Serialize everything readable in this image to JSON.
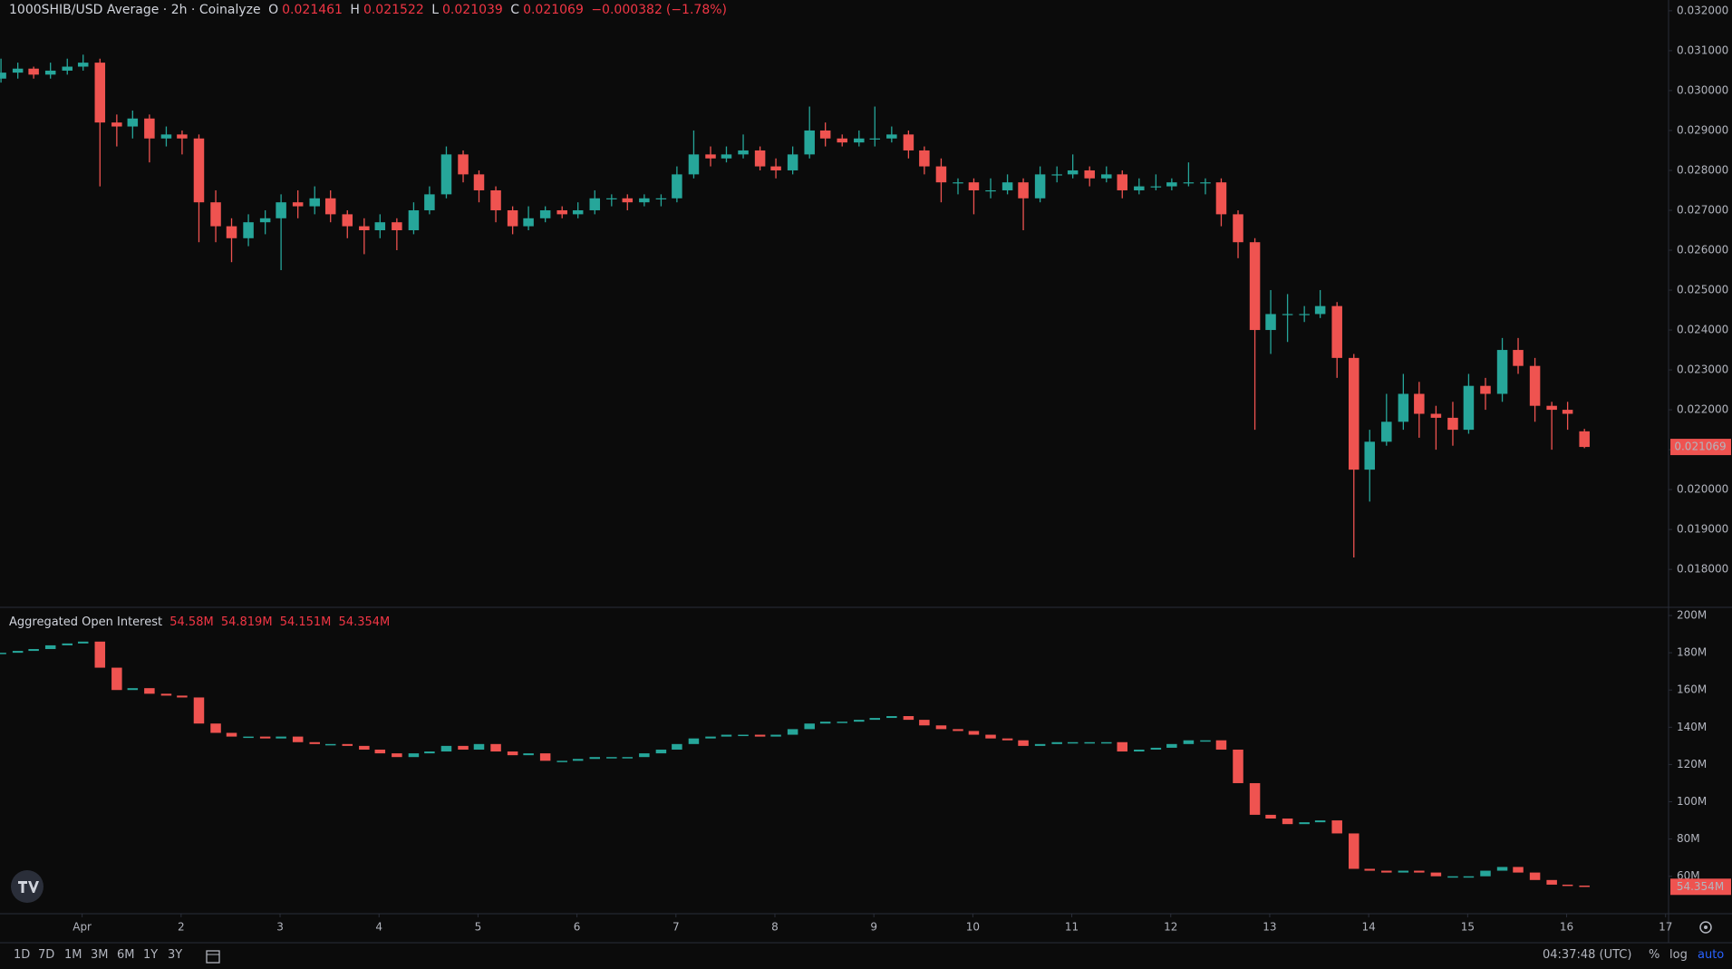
{
  "chart_data": [
    {
      "type": "candlestick",
      "title": "1000SHIB/USD Average · 2h · Coinalyze",
      "ohlc_keys": [
        "O",
        "H",
        "L",
        "C"
      ],
      "change": {
        "value": -0.000382,
        "label": "−0.000382"
      },
      "change_pct": {
        "value": -1.78,
        "label": "(−1.78%)"
      },
      "up_color": "#26a69a",
      "down_color": "#ef5350",
      "x": [
        0.18,
        0.35,
        0.51,
        0.68,
        0.85,
        1.01,
        1.18,
        1.35,
        1.51,
        1.68,
        1.85,
        2.01,
        2.18,
        2.35,
        2.51,
        2.68,
        2.85,
        3.01,
        3.18,
        3.35,
        3.51,
        3.68,
        3.85,
        4.01,
        4.18,
        4.35,
        4.51,
        4.68,
        4.85,
        5.01,
        5.18,
        5.35,
        5.51,
        5.68,
        5.85,
        6.01,
        6.18,
        6.35,
        6.51,
        6.68,
        6.85,
        7.01,
        7.18,
        7.35,
        7.51,
        7.68,
        7.85,
        8.01,
        8.18,
        8.35,
        8.51,
        8.68,
        8.85,
        9.01,
        9.18,
        9.35,
        9.51,
        9.68,
        9.85,
        10.01,
        10.18,
        10.35,
        10.51,
        10.68,
        10.85,
        11.01,
        11.18,
        11.35,
        11.51,
        11.68,
        11.85,
        12.01,
        12.18,
        12.35,
        12.51,
        12.68,
        12.85,
        13.01,
        13.18,
        13.35,
        13.51,
        13.68,
        13.85,
        14.01,
        14.18,
        14.35,
        14.51,
        14.68,
        14.85,
        15.01,
        15.18,
        15.35,
        15.51,
        15.68,
        15.85,
        16.01,
        16.18
      ],
      "open": [
        0.0303,
        0.03045,
        0.03055,
        0.0304,
        0.0305,
        0.0306,
        0.0307,
        0.0292,
        0.0291,
        0.0293,
        0.0288,
        0.0289,
        0.0288,
        0.0272,
        0.0266,
        0.0263,
        0.0267,
        0.0268,
        0.0272,
        0.0271,
        0.0273,
        0.0269,
        0.0266,
        0.0265,
        0.0267,
        0.0265,
        0.027,
        0.0274,
        0.0284,
        0.0279,
        0.0275,
        0.027,
        0.0266,
        0.0268,
        0.027,
        0.0269,
        0.027,
        0.0273,
        0.0273,
        0.0272,
        0.0273,
        0.0273,
        0.0279,
        0.0284,
        0.0283,
        0.0284,
        0.0285,
        0.0281,
        0.028,
        0.0284,
        0.029,
        0.0288,
        0.0287,
        0.0288,
        0.0288,
        0.0289,
        0.0285,
        0.0281,
        0.0277,
        0.0277,
        0.0275,
        0.0275,
        0.0277,
        0.0273,
        0.0279,
        0.0279,
        0.028,
        0.0278,
        0.0279,
        0.0275,
        0.0276,
        0.0276,
        0.0277,
        0.0277,
        0.0277,
        0.0269,
        0.0262,
        0.024,
        0.0244,
        0.0244,
        0.0244,
        0.0246,
        0.0233,
        0.0205,
        0.0212,
        0.0217,
        0.0224,
        0.0219,
        0.0218,
        0.0215,
        0.0226,
        0.0224,
        0.0235,
        0.0231,
        0.0221,
        0.022,
        0.021461
      ],
      "high": [
        0.0308,
        0.0307,
        0.0306,
        0.0307,
        0.0308,
        0.0309,
        0.0308,
        0.0294,
        0.0295,
        0.0294,
        0.0291,
        0.029,
        0.0289,
        0.0275,
        0.0268,
        0.0269,
        0.027,
        0.0274,
        0.0275,
        0.0276,
        0.0275,
        0.027,
        0.0268,
        0.0269,
        0.0268,
        0.0272,
        0.0276,
        0.0286,
        0.0285,
        0.028,
        0.0276,
        0.0271,
        0.0271,
        0.0271,
        0.0271,
        0.0272,
        0.0275,
        0.0274,
        0.0274,
        0.0274,
        0.0274,
        0.0281,
        0.029,
        0.0286,
        0.0286,
        0.0289,
        0.0286,
        0.0283,
        0.0286,
        0.0296,
        0.0292,
        0.0289,
        0.029,
        0.0296,
        0.0291,
        0.029,
        0.0286,
        0.0283,
        0.0278,
        0.0278,
        0.0278,
        0.0279,
        0.0278,
        0.0281,
        0.0281,
        0.0284,
        0.0281,
        0.0281,
        0.028,
        0.0278,
        0.0279,
        0.0278,
        0.0282,
        0.0278,
        0.0278,
        0.027,
        0.0263,
        0.025,
        0.0249,
        0.0246,
        0.025,
        0.0247,
        0.0234,
        0.0215,
        0.0224,
        0.0229,
        0.0227,
        0.0221,
        0.0222,
        0.0229,
        0.0228,
        0.0238,
        0.0238,
        0.0233,
        0.0222,
        0.0222,
        0.021522
      ],
      "low": [
        0.0302,
        0.0303,
        0.0303,
        0.0303,
        0.0304,
        0.0305,
        0.0276,
        0.0286,
        0.0288,
        0.0282,
        0.0286,
        0.0284,
        0.0262,
        0.0262,
        0.0257,
        0.0261,
        0.0264,
        0.0255,
        0.0268,
        0.0269,
        0.0267,
        0.0263,
        0.0259,
        0.0263,
        0.026,
        0.0264,
        0.0269,
        0.0273,
        0.0277,
        0.0272,
        0.0267,
        0.0264,
        0.0265,
        0.0267,
        0.0268,
        0.0268,
        0.0269,
        0.0271,
        0.027,
        0.0271,
        0.0271,
        0.0272,
        0.0278,
        0.0281,
        0.0282,
        0.0283,
        0.028,
        0.0278,
        0.0279,
        0.0283,
        0.0286,
        0.0286,
        0.0286,
        0.0286,
        0.0287,
        0.0283,
        0.0279,
        0.0272,
        0.0274,
        0.0269,
        0.0273,
        0.0274,
        0.0265,
        0.0272,
        0.0277,
        0.0278,
        0.0276,
        0.0277,
        0.0273,
        0.0274,
        0.0275,
        0.0275,
        0.0276,
        0.0274,
        0.0266,
        0.0258,
        0.0215,
        0.0234,
        0.0237,
        0.0242,
        0.0243,
        0.0228,
        0.0183,
        0.0197,
        0.0211,
        0.0215,
        0.0213,
        0.021,
        0.0211,
        0.0214,
        0.022,
        0.0222,
        0.0229,
        0.0217,
        0.021,
        0.0215,
        0.021039
      ],
      "close": [
        0.03045,
        0.03055,
        0.0304,
        0.0305,
        0.0306,
        0.0307,
        0.0292,
        0.0291,
        0.0293,
        0.0288,
        0.0289,
        0.0288,
        0.0272,
        0.0266,
        0.0263,
        0.0267,
        0.0268,
        0.0272,
        0.0271,
        0.0273,
        0.0269,
        0.0266,
        0.0265,
        0.0267,
        0.0265,
        0.027,
        0.0274,
        0.0284,
        0.0279,
        0.0275,
        0.027,
        0.0266,
        0.0268,
        0.027,
        0.0269,
        0.027,
        0.0273,
        0.0273,
        0.0272,
        0.0273,
        0.0273,
        0.0279,
        0.0284,
        0.0283,
        0.0284,
        0.0285,
        0.0281,
        0.028,
        0.0284,
        0.029,
        0.0288,
        0.0287,
        0.0288,
        0.0288,
        0.0289,
        0.0285,
        0.0281,
        0.0277,
        0.0277,
        0.0275,
        0.0275,
        0.0277,
        0.0273,
        0.0279,
        0.0279,
        0.028,
        0.0278,
        0.0279,
        0.0275,
        0.0276,
        0.0276,
        0.0277,
        0.0277,
        0.0277,
        0.0269,
        0.0262,
        0.024,
        0.0244,
        0.0244,
        0.0244,
        0.0246,
        0.0233,
        0.0205,
        0.0212,
        0.0217,
        0.0224,
        0.0219,
        0.0218,
        0.0215,
        0.0226,
        0.0224,
        0.0235,
        0.0231,
        0.0221,
        0.022,
        0.0219,
        0.021069
      ],
      "xlim": [
        0.17,
        17.03
      ],
      "xticks": [
        {
          "value": 1,
          "label": "Apr"
        },
        2,
        3,
        4,
        5,
        6,
        7,
        8,
        9,
        10,
        11,
        12,
        13,
        14,
        15,
        16,
        17
      ],
      "ylim": [
        0.01705,
        0.03227
      ],
      "yticks": [
        {
          "value": 0.018,
          "label": "0.018000"
        },
        {
          "value": 0.019,
          "label": "0.019000"
        },
        {
          "value": 0.02,
          "label": "0.020000"
        },
        {
          "value": 0.021,
          "label": "0.021000"
        },
        {
          "value": 0.022,
          "label": "0.022000"
        },
        {
          "value": 0.023,
          "label": "0.023000"
        },
        {
          "value": 0.024,
          "label": "0.024000"
        },
        {
          "value": 0.025,
          "label": "0.025000"
        },
        {
          "value": 0.026,
          "label": "0.026000"
        },
        {
          "value": 0.027,
          "label": "0.027000"
        },
        {
          "value": 0.028,
          "label": "0.028000"
        },
        {
          "value": 0.029,
          "label": "0.029000"
        },
        {
          "value": 0.03,
          "label": "0.030000"
        },
        {
          "value": 0.031,
          "label": "0.031000"
        },
        {
          "value": 0.032,
          "label": "0.032000"
        }
      ]
    },
    {
      "type": "candlestick-close",
      "title": "Aggregated Open Interest",
      "legend_values": [
        {
          "value": 54.58,
          "label": "54.58M"
        },
        {
          "value": 54.819,
          "label": "54.819M"
        },
        {
          "value": 54.151,
          "label": "54.151M"
        },
        {
          "value": 54.354,
          "label": "54.354M"
        }
      ],
      "up_color": "#26a69a",
      "down_color": "#ef5350",
      "values": [
        180,
        181,
        182,
        184,
        185,
        186,
        172,
        160,
        161,
        158,
        157,
        156,
        142,
        137,
        135,
        135,
        134,
        135,
        132,
        131,
        131,
        130,
        128,
        126,
        124,
        126,
        127,
        130,
        128,
        131,
        127,
        125,
        126,
        122,
        122,
        123,
        124,
        124,
        124,
        126,
        128,
        131,
        134,
        135,
        136,
        136,
        135,
        136,
        139,
        142,
        143,
        143,
        144,
        145,
        146,
        144,
        141,
        139,
        138,
        136,
        134,
        133,
        130,
        131,
        132,
        132,
        132,
        132,
        127,
        128,
        129,
        131,
        133,
        133,
        128,
        110,
        93,
        91,
        88,
        89,
        90,
        83,
        64,
        63,
        62,
        63,
        62,
        60,
        60,
        60,
        63,
        65,
        62,
        58,
        55.5,
        55,
        54.354
      ],
      "ylim": [
        39.9,
        204.4
      ],
      "yticks": [
        {
          "value": 60,
          "label": "60M"
        },
        {
          "value": 80,
          "label": "80M"
        },
        {
          "value": 100,
          "label": "100M"
        },
        {
          "value": 120,
          "label": "120M"
        },
        {
          "value": 140,
          "label": "140M"
        },
        {
          "value": 160,
          "label": "160M"
        },
        {
          "value": 180,
          "label": "180M"
        },
        {
          "value": 200,
          "label": "200M"
        }
      ]
    }
  ],
  "toolbar": {
    "ranges": [
      "1D",
      "7D",
      "1M",
      "3M",
      "6M",
      "1Y",
      "3Y"
    ],
    "clock": "04:37:48 (UTC)",
    "percent": "%",
    "log": "log",
    "auto": "auto"
  }
}
